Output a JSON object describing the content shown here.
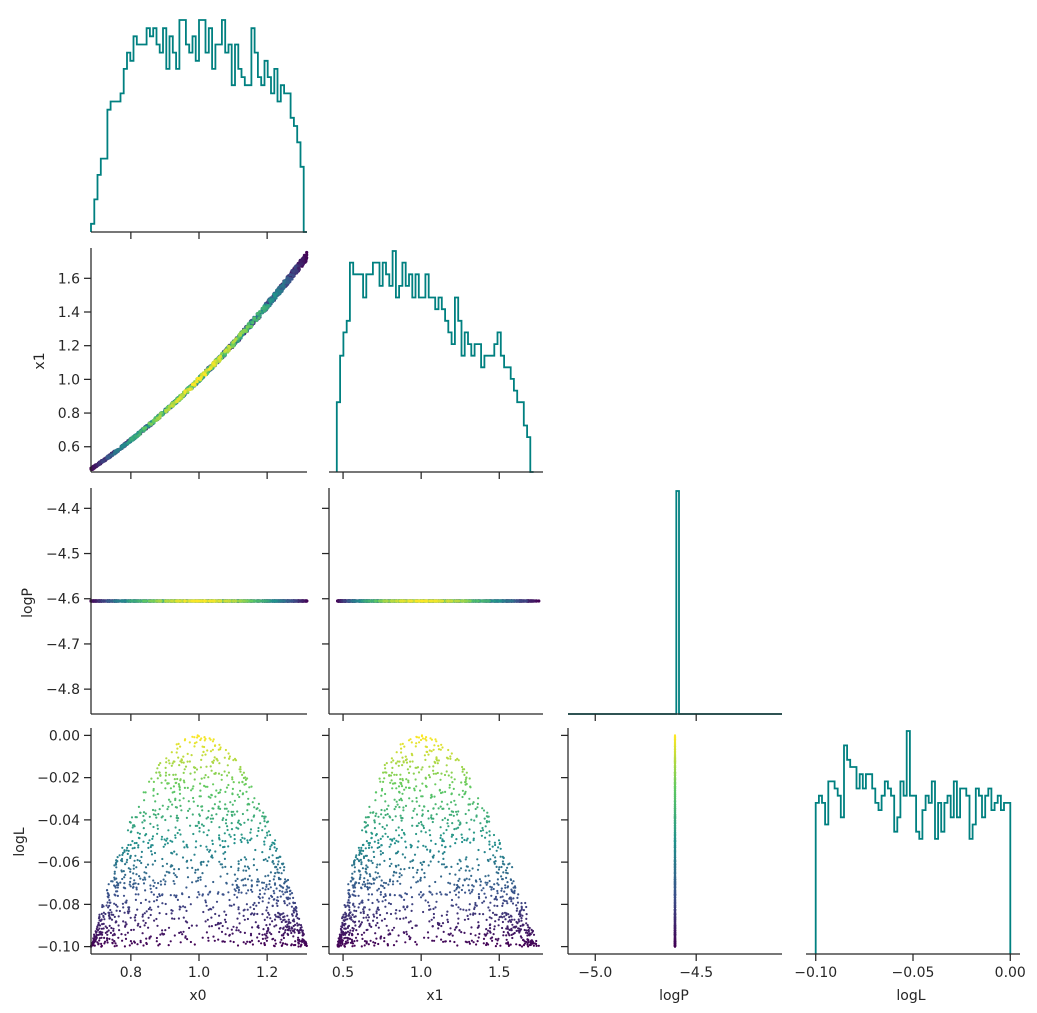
{
  "colors": {
    "hist": "#008080",
    "axis": "#262626",
    "viridis": [
      "#440154",
      "#3b528b",
      "#21918c",
      "#5ec962",
      "#fde725"
    ]
  },
  "chart_data": {
    "type": "scatter",
    "variables": [
      "x0",
      "x1",
      "logP",
      "logL"
    ],
    "layout": "lower-triangle corner plot",
    "color_by": "logL",
    "histograms": {
      "x0": {
        "range": [
          0.683,
          1.317
        ],
        "values": [
          1,
          4,
          7,
          9,
          9,
          15,
          16,
          16,
          16,
          17,
          20,
          22,
          21,
          24,
          23,
          23,
          23,
          25,
          24,
          25,
          23,
          22,
          25,
          20,
          24,
          22,
          20,
          26,
          26,
          23,
          22,
          24,
          21,
          26,
          26,
          22,
          25,
          20,
          23,
          23,
          26,
          22,
          23,
          18,
          23,
          20,
          19,
          18,
          18,
          25,
          22,
          19,
          18,
          21,
          19,
          17,
          20,
          16,
          18,
          17,
          17,
          14,
          13,
          11,
          8,
          0
        ]
      },
      "x1": {
        "range": [
          0.46,
          1.72
        ],
        "values": [
          6,
          10,
          12,
          13,
          18,
          17,
          17,
          17,
          15,
          17,
          17,
          18,
          18,
          16,
          18,
          17,
          16,
          19,
          15,
          16,
          18,
          16,
          17,
          15,
          17,
          15,
          15,
          17,
          15,
          15,
          14,
          15,
          14,
          13,
          12,
          11,
          15,
          13,
          10,
          12,
          11,
          10,
          11,
          11,
          9,
          10,
          10,
          10,
          11,
          12,
          10,
          9,
          9,
          8,
          7,
          6,
          6,
          4,
          3,
          0
        ]
      },
      "logP": {
        "range": [
          -5.135,
          -4.075
        ],
        "values": [
          0,
          0,
          0,
          0,
          0,
          0,
          0,
          0,
          0,
          0,
          0,
          0,
          0,
          0,
          0,
          0,
          0,
          0,
          0,
          0,
          0,
          0,
          0,
          0,
          0,
          0,
          0,
          0,
          0,
          0,
          0,
          0,
          0,
          0,
          0,
          0,
          0,
          0,
          0,
          0,
          0,
          1,
          0,
          0,
          0,
          0,
          0,
          0,
          0,
          0,
          0,
          0,
          0,
          0,
          0,
          0,
          0,
          0,
          0,
          0,
          0,
          0,
          0,
          0,
          0,
          0,
          0,
          0,
          0,
          0,
          0,
          0,
          0,
          0,
          0,
          0,
          0,
          0,
          0,
          0,
          0
        ]
      },
      "logL": {
        "range": [
          -0.1,
          0
        ],
        "values": [
          21,
          22,
          21,
          18,
          24,
          24,
          23,
          22,
          19,
          29,
          27,
          26,
          26,
          23,
          25,
          23,
          25,
          25,
          23,
          21,
          20,
          22,
          24,
          23,
          22,
          17,
          19,
          24,
          22,
          31,
          22,
          22,
          17,
          16,
          20,
          22,
          21,
          24,
          16,
          21,
          17,
          21,
          22,
          19,
          24,
          19,
          23,
          23,
          22,
          16,
          18,
          23,
          22,
          19,
          22,
          23,
          20,
          21,
          22,
          20,
          21,
          21
        ]
      }
    },
    "scatter_ranges": {
      "x0": [
        0.683,
        1.317
      ],
      "x1": [
        0.46,
        1.72
      ],
      "logP": [
        -5.135,
        -4.075
      ],
      "logL": [
        -0.1,
        0.0
      ]
    },
    "relations": {
      "x1_vs_x0": "x1 ≈ x0^2 (thin curved band)",
      "logP": "constant −4.605",
      "logL_vs_x0": "parabolic envelope, maximum 0 at x0 = 1, reaching −0.1 at range edges",
      "logL_vs_x1": "parabolic envelope, maximum 0 at x1 = 1"
    },
    "axes": {
      "x0": {
        "label": "x0",
        "lim": [
          0.683,
          1.317
        ],
        "ticks": [
          0.8,
          1.0,
          1.2
        ],
        "tick_labels": [
          "0.8",
          "1.0",
          "1.2"
        ]
      },
      "x1": {
        "label": "x1",
        "lim": [
          0.41,
          1.78
        ],
        "ticks": [
          0.5,
          1.0,
          1.5
        ],
        "tick_labels": [
          "0.5",
          "1.0",
          "1.5"
        ],
        "y_lim": [
          0.45,
          1.78
        ],
        "y_ticks": [
          0.6,
          0.8,
          1.0,
          1.2,
          1.4,
          1.6
        ],
        "y_tick_labels": [
          "0.6",
          "0.8",
          "1.0",
          "1.2",
          "1.4",
          "1.6"
        ]
      },
      "logP": {
        "label": "logP",
        "lim": [
          -5.135,
          -4.075
        ],
        "ticks": [
          -5.0,
          -4.5
        ],
        "tick_labels": [
          "−5.0",
          "−4.5"
        ],
        "y_lim": [
          -4.855,
          -4.355
        ],
        "y_ticks": [
          -4.4,
          -4.5,
          -4.6,
          -4.7,
          -4.8
        ],
        "y_tick_labels": [
          "−4.4",
          "−4.5",
          "−4.6",
          "−4.7",
          "−4.8"
        ]
      },
      "logL": {
        "label": "logL",
        "lim": [
          -0.105,
          0.005
        ],
        "ticks": [
          -0.1,
          -0.05,
          0.0
        ],
        "tick_labels": [
          "−0.10",
          "−0.05",
          "0.00"
        ],
        "y_lim": [
          -0.1035,
          0.0035
        ],
        "y_ticks": [
          0.0,
          -0.02,
          -0.04,
          -0.06,
          -0.08,
          -0.1
        ],
        "y_tick_labels": [
          "0.00",
          "−0.02",
          "−0.04",
          "−0.06",
          "−0.08",
          "−0.10"
        ]
      }
    },
    "xlabels": [
      "x0",
      "x1",
      "logP",
      "logL"
    ],
    "ylabels": [
      "x1",
      "logP",
      "logL"
    ],
    "grid": false,
    "legend": "none"
  }
}
